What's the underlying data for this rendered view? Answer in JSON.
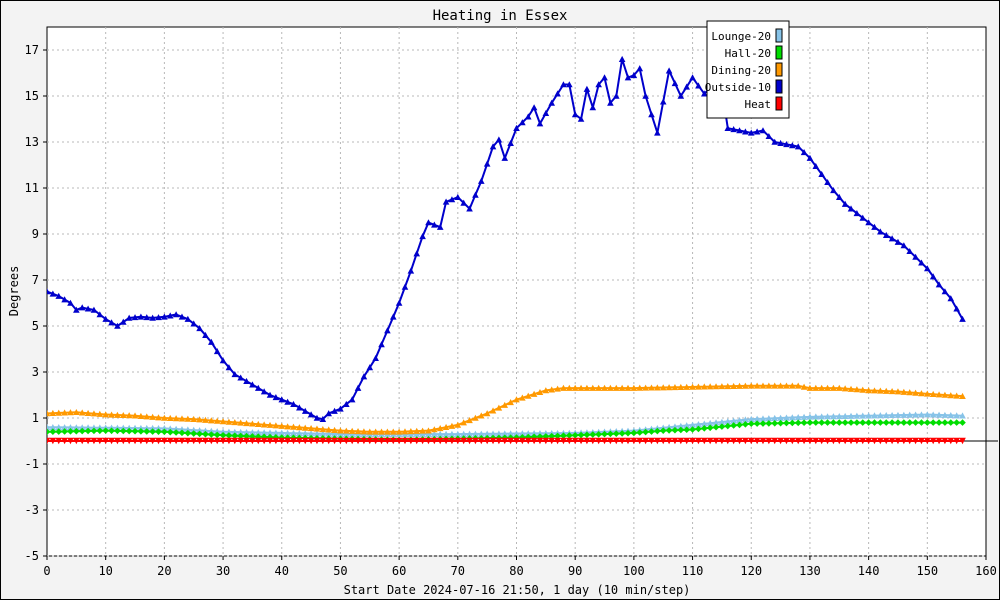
{
  "chart_data": {
    "type": "line",
    "title": "Heating in Essex",
    "xlabel": "Start Date 2024-07-16 21:50, 1 day (10 min/step)",
    "ylabel": "Degrees",
    "xlim": [
      0,
      160
    ],
    "ylim": [
      -5,
      18
    ],
    "x_ticks": [
      0,
      10,
      20,
      30,
      40,
      50,
      60,
      70,
      80,
      90,
      100,
      110,
      120,
      130,
      140,
      150,
      160
    ],
    "y_ticks": [
      -5,
      -3,
      -1,
      1,
      3,
      5,
      7,
      9,
      11,
      13,
      15,
      17
    ],
    "grid": true,
    "legend_position": "top-right",
    "series": [
      {
        "name": "Lounge-20",
        "color": "#87c3e8",
        "marker": "triangle",
        "y_at_x": [
          [
            0,
            0.6
          ],
          [
            20,
            0.55
          ],
          [
            30,
            0.4
          ],
          [
            50,
            0.3
          ],
          [
            70,
            0.3
          ],
          [
            90,
            0.35
          ],
          [
            100,
            0.45
          ],
          [
            110,
            0.7
          ],
          [
            120,
            0.95
          ],
          [
            130,
            1.05
          ],
          [
            140,
            1.1
          ],
          [
            150,
            1.15
          ],
          [
            156,
            1.1
          ]
        ]
      },
      {
        "name": "Hall-20",
        "color": "#00dd00",
        "marker": "diamond",
        "y_at_x": [
          [
            0,
            0.4
          ],
          [
            10,
            0.45
          ],
          [
            20,
            0.4
          ],
          [
            30,
            0.25
          ],
          [
            40,
            0.15
          ],
          [
            50,
            0.1
          ],
          [
            60,
            0.05
          ],
          [
            70,
            0.1
          ],
          [
            80,
            0.15
          ],
          [
            90,
            0.25
          ],
          [
            100,
            0.35
          ],
          [
            105,
            0.45
          ],
          [
            110,
            0.5
          ],
          [
            120,
            0.75
          ],
          [
            130,
            0.8
          ],
          [
            140,
            0.8
          ],
          [
            150,
            0.8
          ],
          [
            156,
            0.8
          ]
        ]
      },
      {
        "name": "Dining-20",
        "color": "#ff9900",
        "marker": "triangle",
        "y_at_x": [
          [
            0,
            1.2
          ],
          [
            5,
            1.25
          ],
          [
            10,
            1.15
          ],
          [
            15,
            1.1
          ],
          [
            20,
            1.0
          ],
          [
            25,
            0.95
          ],
          [
            30,
            0.85
          ],
          [
            35,
            0.75
          ],
          [
            40,
            0.65
          ],
          [
            45,
            0.55
          ],
          [
            50,
            0.45
          ],
          [
            55,
            0.4
          ],
          [
            60,
            0.4
          ],
          [
            65,
            0.45
          ],
          [
            70,
            0.7
          ],
          [
            75,
            1.2
          ],
          [
            80,
            1.8
          ],
          [
            85,
            2.2
          ],
          [
            88,
            2.3
          ],
          [
            100,
            2.3
          ],
          [
            110,
            2.35
          ],
          [
            120,
            2.4
          ],
          [
            128,
            2.4
          ],
          [
            130,
            2.3
          ],
          [
            135,
            2.3
          ],
          [
            140,
            2.2
          ],
          [
            145,
            2.15
          ],
          [
            150,
            2.05
          ],
          [
            156,
            1.95
          ]
        ]
      },
      {
        "name": "Outside-10",
        "color": "#0000cc",
        "marker": "triangle",
        "y_at_x": [
          [
            0,
            6.5
          ],
          [
            2,
            6.3
          ],
          [
            4,
            6.0
          ],
          [
            5,
            5.7
          ],
          [
            6,
            5.8
          ],
          [
            8,
            5.7
          ],
          [
            10,
            5.3
          ],
          [
            12,
            5.0
          ],
          [
            14,
            5.35
          ],
          [
            16,
            5.4
          ],
          [
            18,
            5.35
          ],
          [
            20,
            5.4
          ],
          [
            22,
            5.5
          ],
          [
            24,
            5.3
          ],
          [
            26,
            4.9
          ],
          [
            28,
            4.3
          ],
          [
            30,
            3.5
          ],
          [
            32,
            2.9
          ],
          [
            34,
            2.6
          ],
          [
            36,
            2.3
          ],
          [
            38,
            2.0
          ],
          [
            40,
            1.8
          ],
          [
            42,
            1.6
          ],
          [
            44,
            1.3
          ],
          [
            46,
            1.0
          ],
          [
            47,
            0.95
          ],
          [
            48,
            1.2
          ],
          [
            50,
            1.4
          ],
          [
            52,
            1.8
          ],
          [
            54,
            2.8
          ],
          [
            56,
            3.6
          ],
          [
            58,
            4.8
          ],
          [
            60,
            6.0
          ],
          [
            62,
            7.4
          ],
          [
            64,
            8.9
          ],
          [
            65,
            9.5
          ],
          [
            67,
            9.3
          ],
          [
            68,
            10.4
          ],
          [
            70,
            10.6
          ],
          [
            72,
            10.1
          ],
          [
            74,
            11.3
          ],
          [
            76,
            12.8
          ],
          [
            77,
            13.1
          ],
          [
            78,
            12.3
          ],
          [
            80,
            13.6
          ],
          [
            82,
            14.1
          ],
          [
            83,
            14.5
          ],
          [
            84,
            13.8
          ],
          [
            86,
            14.7
          ],
          [
            88,
            15.5
          ],
          [
            89,
            15.5
          ],
          [
            90,
            14.2
          ],
          [
            91,
            14.0
          ],
          [
            92,
            15.3
          ],
          [
            93,
            14.5
          ],
          [
            94,
            15.5
          ],
          [
            95,
            15.8
          ],
          [
            96,
            14.7
          ],
          [
            97,
            15.0
          ],
          [
            98,
            16.6
          ],
          [
            99,
            15.8
          ],
          [
            100,
            15.9
          ],
          [
            101,
            16.2
          ],
          [
            102,
            15.0
          ],
          [
            104,
            13.4
          ],
          [
            106,
            16.1
          ],
          [
            108,
            15.0
          ],
          [
            110,
            15.8
          ],
          [
            112,
            15.1
          ],
          [
            114,
            15.6
          ],
          [
            115,
            15.3
          ],
          [
            116,
            13.6
          ],
          [
            118,
            13.5
          ],
          [
            120,
            13.4
          ],
          [
            122,
            13.5
          ],
          [
            124,
            13.0
          ],
          [
            126,
            12.9
          ],
          [
            128,
            12.8
          ],
          [
            130,
            12.3
          ],
          [
            132,
            11.6
          ],
          [
            134,
            10.9
          ],
          [
            136,
            10.3
          ],
          [
            138,
            9.9
          ],
          [
            140,
            9.5
          ],
          [
            142,
            9.1
          ],
          [
            144,
            8.8
          ],
          [
            146,
            8.5
          ],
          [
            148,
            8.0
          ],
          [
            150,
            7.5
          ],
          [
            152,
            6.8
          ],
          [
            154,
            6.2
          ],
          [
            156,
            5.3
          ]
        ]
      },
      {
        "name": "Heat",
        "color": "#ff0000",
        "marker": "triangle-down",
        "y_at_x": [
          [
            0,
            0.0
          ],
          [
            156,
            0.0
          ]
        ]
      }
    ]
  }
}
